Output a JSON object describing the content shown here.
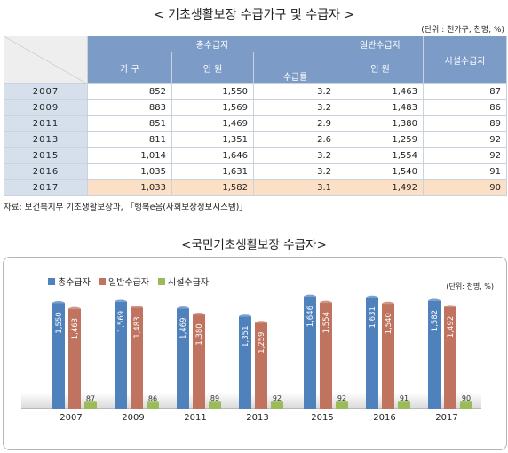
{
  "table": {
    "title": "< 기초생활보장 수급가구 및 수급자 >",
    "unit_note": "(단위 : 천가구, 천명, %)",
    "header": {
      "total": "총수급자",
      "general": "일반수급자",
      "facility": "시설수급자",
      "households": "가 구",
      "persons": "인 원",
      "rate": "수급률",
      "general_persons": "인 원"
    },
    "rows": [
      {
        "year": "2007",
        "households": "852",
        "persons": "1,550",
        "rate": "3.2",
        "general": "1,463",
        "facility": "87"
      },
      {
        "year": "2009",
        "households": "883",
        "persons": "1,569",
        "rate": "3.2",
        "general": "1,483",
        "facility": "86"
      },
      {
        "year": "2011",
        "households": "851",
        "persons": "1,469",
        "rate": "2.9",
        "general": "1,380",
        "facility": "89"
      },
      {
        "year": "2013",
        "households": "811",
        "persons": "1,351",
        "rate": "2.6",
        "general": "1,259",
        "facility": "92"
      },
      {
        "year": "2015",
        "households": "1,014",
        "persons": "1,646",
        "rate": "3.2",
        "general": "1,554",
        "facility": "92"
      },
      {
        "year": "2016",
        "households": "1,035",
        "persons": "1,631",
        "rate": "3.2",
        "general": "1,540",
        "facility": "91"
      },
      {
        "year": "2017",
        "households": "1,033",
        "persons": "1,582",
        "rate": "3.1",
        "general": "1,492",
        "facility": "90"
      }
    ],
    "source": "자료: 보건복지부 기초생활보장과, 「행복e음(사회보장정보시스템)」"
  },
  "chart_data": {
    "type": "bar",
    "title": "<국민기초생활보장 수급자>",
    "unit_note": "(단위: 천명, %)",
    "legend_position": "top-left",
    "categories": [
      "2007",
      "2009",
      "2011",
      "2013",
      "2015",
      "2016",
      "2017"
    ],
    "series": [
      {
        "name": "총수급자",
        "color": "#4f81bd",
        "values": [
          1550,
          1569,
          1469,
          1351,
          1646,
          1631,
          1582
        ]
      },
      {
        "name": "일반수급자",
        "color": "#c0735f",
        "values": [
          1463,
          1483,
          1380,
          1259,
          1554,
          1540,
          1492
        ]
      },
      {
        "name": "시설수급자",
        "color": "#9bbb59",
        "values": [
          87,
          86,
          89,
          92,
          92,
          91,
          90
        ]
      }
    ],
    "labels": [
      [
        "1,550",
        "1,569",
        "1,469",
        "1,351",
        "1,646",
        "1,631",
        "1,582"
      ],
      [
        "1,463",
        "1,483",
        "1,380",
        "1,259",
        "1,554",
        "1,540",
        "1,492"
      ],
      [
        "87",
        "86",
        "89",
        "92",
        "92",
        "91",
        "90"
      ]
    ]
  }
}
